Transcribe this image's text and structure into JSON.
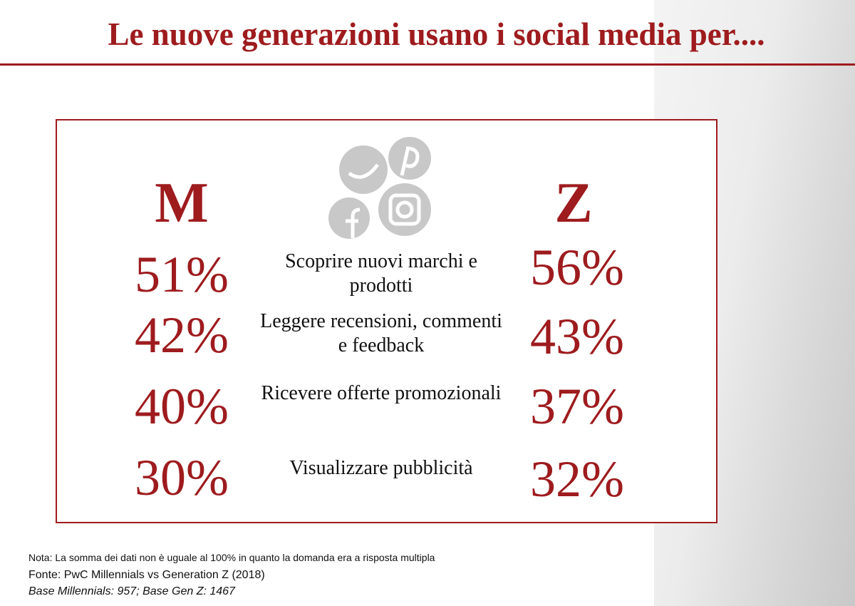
{
  "title": "Le nuove generazioni usano i social media per....",
  "columns": {
    "left": "M",
    "right": "Z"
  },
  "rows": [
    {
      "left": "51%",
      "label": "Scoprire nuovi marchi e prodotti",
      "right": "56%"
    },
    {
      "left": "42%",
      "label": "Leggere recensioni, commenti e feedback",
      "right": "43%"
    },
    {
      "left": "40%",
      "label": "Ricevere offerte promozionali",
      "right": "37%"
    },
    {
      "left": "30%",
      "label": "Visualizzare pubblicità",
      "right": "32%"
    }
  ],
  "footer": {
    "note": "Nota: La somma dei dati non è uguale al 100% in quanto la domanda era a risposta multipla",
    "source": "Fonte: PwC Millennials vs Generation Z (2018)",
    "base": "Base Millennials: 957; Base Gen Z: 1467"
  }
}
